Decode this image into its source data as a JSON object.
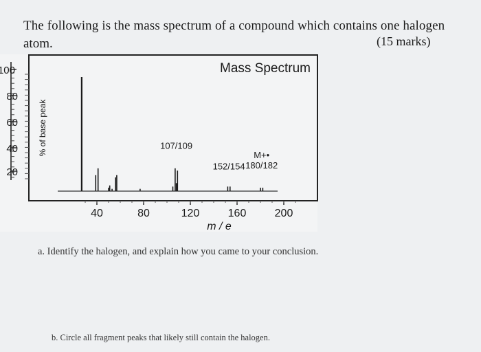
{
  "question": {
    "line1": "The following is the mass spectrum of a compound which contains one halogen",
    "line2": "atom.",
    "marks": "(15 marks)",
    "part_a": "a. Identify the halogen, and explain how you came to your conclusion.",
    "part_b": "b. Circle all fragment peaks that likely still contain the halogen."
  },
  "chart_data": {
    "type": "bar",
    "title": "Mass Spectrum",
    "xlabel": "m / e",
    "ylabel": "% of base peak",
    "xlim": [
      30,
      210
    ],
    "ylim": [
      0,
      100
    ],
    "x_ticks": [
      40,
      80,
      120,
      160,
      200
    ],
    "y_ticks": [
      100,
      80,
      60,
      40,
      20
    ],
    "peaks": [
      {
        "x": 27,
        "y": 100
      },
      {
        "x": 39,
        "y": 14
      },
      {
        "x": 41,
        "y": 20
      },
      {
        "x": 50,
        "y": 3
      },
      {
        "x": 51,
        "y": 5
      },
      {
        "x": 53,
        "y": 2
      },
      {
        "x": 56,
        "y": 12
      },
      {
        "x": 57,
        "y": 14
      },
      {
        "x": 77,
        "y": 2
      },
      {
        "x": 105,
        "y": 4
      },
      {
        "x": 107,
        "y": 20
      },
      {
        "x": 108,
        "y": 7
      },
      {
        "x": 109,
        "y": 18
      },
      {
        "x": 152,
        "y": 4
      },
      {
        "x": 154,
        "y": 4
      },
      {
        "x": 180,
        "y": 3
      },
      {
        "x": 182,
        "y": 3
      }
    ],
    "annotations": [
      {
        "text": "107/109",
        "x": 108,
        "y": 37
      },
      {
        "text": "152/154",
        "x": 153,
        "y": 19
      },
      {
        "text": "M+•",
        "x": 181,
        "y": 29
      },
      {
        "text": "180/182",
        "x": 181,
        "y": 20
      }
    ]
  }
}
